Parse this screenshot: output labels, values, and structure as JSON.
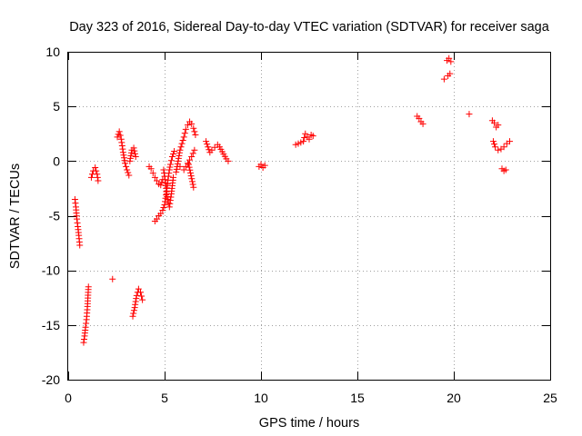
{
  "chart_data": {
    "type": "scatter",
    "title": "Day 323 of 2016, Sidereal Day-to-day VTEC variation (SDTVAR) for receiver saga",
    "xlabel": "GPS time / hours",
    "ylabel": "SDTVAR / TECUs",
    "xlim": [
      0,
      25
    ],
    "ylim": [
      -20,
      10
    ],
    "xticks": [
      0,
      5,
      10,
      15,
      20,
      25
    ],
    "yticks": [
      -20,
      -15,
      -10,
      -5,
      0,
      5,
      10
    ],
    "grid": true,
    "marker": "+",
    "color": "#ff0000",
    "segments": [
      {
        "x": [
          0.35,
          0.4,
          0.45,
          0.5,
          0.55,
          0.6
        ],
        "y": [
          -3.5,
          -4.2,
          -5.3,
          -6.0,
          -6.8,
          -7.7
        ]
      },
      {
        "x": [
          0.8,
          0.85,
          0.9,
          0.95,
          1.0,
          1.05
        ],
        "y": [
          -16.6,
          -16.0,
          -15.2,
          -14.5,
          -13.3,
          -11.5
        ]
      },
      {
        "x": [
          1.2,
          1.3,
          1.4,
          1.5,
          1.55
        ],
        "y": [
          -1.5,
          -0.9,
          -0.6,
          -1.2,
          -1.8
        ]
      },
      {
        "x": [
          2.3
        ],
        "y": [
          -10.8
        ]
      },
      {
        "x": [
          2.55,
          2.65,
          2.75,
          2.85,
          2.95,
          3.05,
          3.15
        ],
        "y": [
          2.2,
          2.7,
          2.0,
          0.8,
          -0.2,
          -0.8,
          -1.3
        ]
      },
      {
        "x": [
          3.2,
          3.3,
          3.4,
          3.5
        ],
        "y": [
          0.0,
          1.0,
          1.2,
          0.4
        ]
      },
      {
        "x": [
          3.35,
          3.45,
          3.55,
          3.65,
          3.75,
          3.85
        ],
        "y": [
          -14.2,
          -13.4,
          -12.3,
          -11.7,
          -12.0,
          -12.7
        ]
      },
      {
        "x": [
          4.2,
          4.3,
          4.4,
          4.5,
          4.6,
          4.7,
          4.8,
          4.9
        ],
        "y": [
          -0.5,
          -0.7,
          -1.1,
          -1.5,
          -1.8,
          -2.1,
          -2.2,
          -1.7
        ]
      },
      {
        "x": [
          4.5,
          4.6,
          4.7,
          4.8,
          4.9,
          5.0,
          5.05,
          5.1,
          5.15,
          5.2,
          5.25,
          5.3,
          5.4,
          5.5
        ],
        "y": [
          -5.5,
          -5.3,
          -5.0,
          -4.8,
          -4.5,
          -4.0,
          -3.4,
          -2.8,
          -2.1,
          -1.4,
          -0.8,
          -0.3,
          0.4,
          0.9
        ]
      },
      {
        "x": [
          4.95,
          5.05,
          5.15,
          5.25,
          5.35,
          5.45
        ],
        "y": [
          -0.8,
          -2.0,
          -3.5,
          -4.2,
          -3.0,
          -1.5
        ]
      },
      {
        "x": [
          5.6,
          5.7,
          5.8,
          5.9,
          6.0,
          6.1,
          6.2,
          6.3,
          6.4,
          6.5,
          6.6
        ],
        "y": [
          -1.0,
          0.0,
          1.0,
          1.6,
          2.2,
          2.9,
          3.3,
          3.6,
          3.4,
          3.0,
          2.4
        ]
      },
      {
        "x": [
          5.8,
          6.0,
          6.2,
          6.4,
          6.55
        ],
        "y": [
          -0.5,
          -0.8,
          -0.2,
          0.4,
          1.0
        ]
      },
      {
        "x": [
          6.25,
          6.5
        ],
        "y": [
          -0.3,
          -2.4
        ]
      },
      {
        "x": [
          7.15,
          7.25,
          7.35,
          7.45,
          7.75,
          7.85,
          8.2,
          8.3
        ],
        "y": [
          1.8,
          1.3,
          0.8,
          1.0,
          1.5,
          1.3,
          0.2,
          0.0
        ]
      },
      {
        "x": [
          9.9,
          10.0,
          10.1,
          10.2
        ],
        "y": [
          -0.5,
          -0.3,
          -0.6,
          -0.4
        ]
      },
      {
        "x": [
          11.8,
          12.2,
          12.3,
          12.4,
          12.5,
          12.6,
          12.7
        ],
        "y": [
          1.5,
          1.8,
          2.5,
          2.2,
          2.0,
          2.4,
          2.3
        ]
      },
      {
        "x": [
          18.1,
          18.2,
          18.3,
          18.4
        ],
        "y": [
          4.1,
          3.9,
          3.6,
          3.4
        ]
      },
      {
        "x": [
          19.5,
          19.7,
          19.8
        ],
        "y": [
          7.5,
          7.8,
          8.0
        ]
      },
      {
        "x": [
          19.65,
          19.75,
          19.85
        ],
        "y": [
          9.2,
          9.4,
          9.1
        ]
      },
      {
        "x": [
          20.8
        ],
        "y": [
          4.3
        ]
      },
      {
        "x": [
          22.0,
          22.1,
          22.2,
          22.3
        ],
        "y": [
          3.7,
          3.5,
          3.1,
          3.3
        ]
      },
      {
        "x": [
          22.05,
          22.15,
          22.3,
          22.45,
          22.6,
          22.75,
          22.9
        ],
        "y": [
          1.8,
          1.3,
          1.0,
          1.1,
          1.3,
          1.6,
          1.8
        ]
      },
      {
        "x": [
          22.5,
          22.6,
          22.7
        ],
        "y": [
          -0.7,
          -0.9,
          -0.8
        ]
      }
    ]
  }
}
